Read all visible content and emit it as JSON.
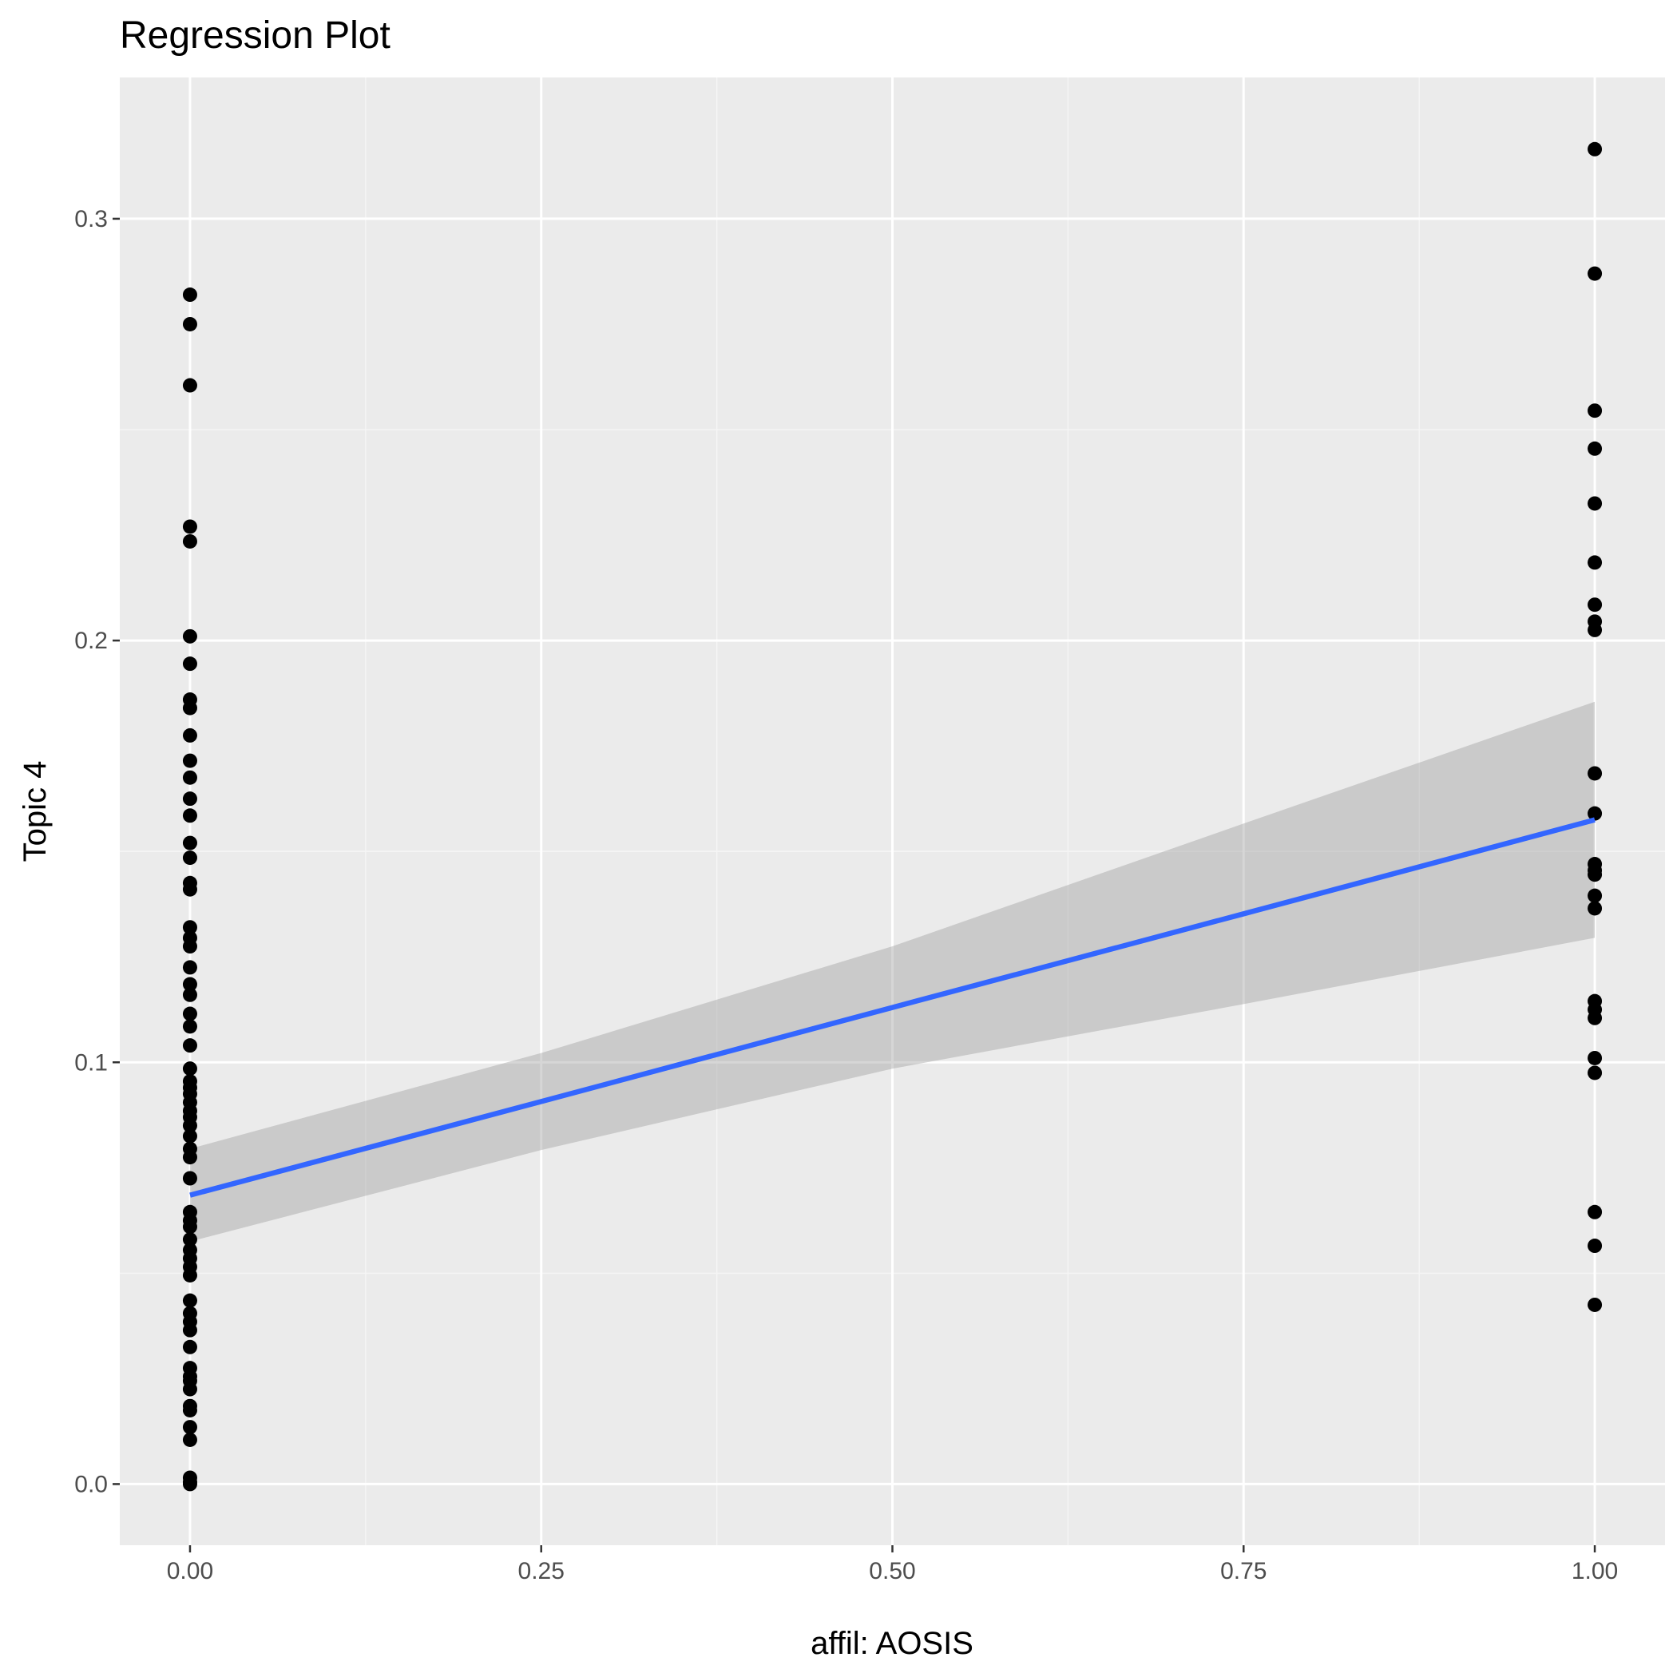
{
  "chart_data": {
    "type": "scatter",
    "title": "Regression Plot",
    "xlabel": "affil: AOSIS",
    "ylabel": "Topic 4",
    "xlim": [
      -0.05,
      1.05
    ],
    "ylim": [
      -0.0145,
      0.3335
    ],
    "x_ticks": [
      0.0,
      0.25,
      0.5,
      0.75,
      1.0
    ],
    "x_tick_labels": [
      "0.00",
      "0.25",
      "0.50",
      "0.75",
      "1.00"
    ],
    "y_ticks": [
      0.0,
      0.1,
      0.2,
      0.3
    ],
    "y_tick_labels": [
      "0.0",
      "0.1",
      "0.2",
      "0.3"
    ],
    "grid": true,
    "legend": "none",
    "colors": {
      "panel_background": "#ebebeb",
      "grid_major": "#ffffff",
      "grid_minor": "#f5f5f5",
      "points": "#000000",
      "fit_line": "#3366ff",
      "confidence_band": "#999999",
      "tick_label": "#4d4d4d",
      "tick_mark": "#333333"
    },
    "series": [
      {
        "group": "affil = 0",
        "x": 0,
        "y": [
          0.282,
          0.275,
          0.2605,
          0.227,
          0.2235,
          0.201,
          0.1945,
          0.186,
          0.184,
          0.1775,
          0.1715,
          0.1675,
          0.1625,
          0.1585,
          0.152,
          0.1485,
          0.1425,
          0.141,
          0.132,
          0.1295,
          0.1275,
          0.1225,
          0.1185,
          0.116,
          0.1115,
          0.1085,
          0.104,
          0.0985,
          0.0955,
          0.094,
          0.0925,
          0.0905,
          0.0885,
          0.087,
          0.085,
          0.0825,
          0.0795,
          0.0775,
          0.0725,
          0.0645,
          0.0625,
          0.061,
          0.058,
          0.0555,
          0.0535,
          0.0515,
          0.0495,
          0.0435,
          0.0405,
          0.0385,
          0.0365,
          0.0325,
          0.0275,
          0.0255,
          0.0245,
          0.0225,
          0.0185,
          0.0175,
          0.0135,
          0.0105,
          0.0015,
          0.0005,
          0.0
        ]
      },
      {
        "group": "affil = 1",
        "x": 1,
        "y": [
          0.3165,
          0.287,
          0.2545,
          0.2455,
          0.2325,
          0.2185,
          0.2085,
          0.2045,
          0.2025,
          0.1685,
          0.159,
          0.147,
          0.1455,
          0.1445,
          0.1395,
          0.1365,
          0.1145,
          0.1125,
          0.1105,
          0.101,
          0.0975,
          0.0645,
          0.0565,
          0.0425
        ]
      }
    ],
    "regression": {
      "x": [
        0.0,
        0.25,
        0.5,
        0.75,
        1.0
      ],
      "fit": [
        0.0685,
        0.0907,
        0.113,
        0.1352,
        0.1575
      ],
      "lower": [
        0.0575,
        0.0792,
        0.0985,
        0.1138,
        0.1295
      ],
      "upper": [
        0.0795,
        0.1022,
        0.1275,
        0.1566,
        0.1855
      ]
    }
  }
}
